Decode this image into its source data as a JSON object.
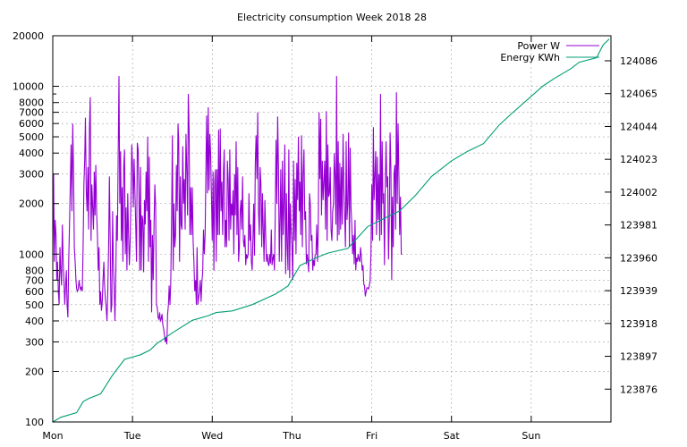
{
  "chart_data": {
    "type": "line",
    "title": "Electricity consumption Week 2018 28",
    "xlabel": "",
    "ylabel": "",
    "y2label": "",
    "x_ticks": [
      "Mon",
      "Tue",
      "Wed",
      "Thu",
      "Fri",
      "Sat",
      "Sun"
    ],
    "xlim_days": [
      0,
      7
    ],
    "ylim": [
      100,
      20000
    ],
    "yscale": "log",
    "y_ticks": [
      100,
      200,
      300,
      400,
      500,
      600,
      700,
      800,
      1000,
      2000,
      3000,
      4000,
      5000,
      6000,
      7000,
      8000,
      10000,
      20000
    ],
    "y2lim": [
      123855,
      124102
    ],
    "y2_ticks": [
      123876,
      123897,
      123918,
      123939,
      123960,
      123981,
      124002,
      124023,
      124044,
      124065,
      124086
    ],
    "grid": true,
    "legend_position": "top-right",
    "series": [
      {
        "name": "Power W",
        "axis": "y",
        "color": "#9400d3",
        "resolution_days": 0.01,
        "x_start_day": 0.0,
        "values": [
          1000,
          3000,
          900,
          1600,
          1300,
          700,
          900,
          600,
          500,
          1100,
          800,
          650,
          1500,
          900,
          700,
          500,
          650,
          800,
          500,
          420,
          900,
          1500,
          2600,
          4500,
          1800,
          6000,
          3100,
          1100,
          900,
          700,
          620,
          600,
          620,
          700,
          640,
          610,
          640,
          600,
          1100,
          2600,
          3700,
          6500,
          2400,
          1800,
          3300,
          1400,
          5600,
          8600,
          1200,
          2600,
          1900,
          1400,
          3100,
          1700,
          3400,
          1800,
          1300,
          800,
          1100,
          500,
          600,
          460,
          520,
          700,
          900,
          650,
          540,
          480,
          400,
          600,
          1100,
          2900,
          1200,
          450,
          500,
          1800,
          900,
          650,
          400,
          700,
          1700,
          1200,
          3800,
          11500,
          2000,
          4100,
          1200,
          2500,
          900,
          3300,
          4200,
          1000,
          1900,
          800,
          2300,
          1300,
          860,
          1200,
          2100,
          4500,
          3500,
          1900,
          3700,
          2400,
          1500,
          900,
          4600,
          4200,
          2400,
          800,
          3300,
          800,
          1700,
          1600,
          780,
          2100,
          1500,
          3100,
          1800,
          5000,
          900,
          3800,
          1100,
          1600,
          450,
          1300,
          700,
          1500,
          2600,
          1900,
          500,
          480,
          420,
          410,
          450,
          400,
          410,
          440,
          380,
          360,
          330,
          300,
          320,
          290,
          440,
          500,
          650,
          500,
          680,
          1600,
          5100,
          800,
          2000,
          1100,
          1300,
          3400,
          1800,
          6000,
          4700,
          900,
          2900,
          1500,
          1400,
          4400,
          2000,
          2800,
          1400,
          5200,
          3200,
          1700,
          9000,
          5600,
          1300,
          2500,
          1300,
          2500,
          1200,
          900,
          600,
          700,
          500,
          1100,
          500,
          550,
          600,
          700,
          520,
          680,
          780,
          1400,
          1000,
          1300,
          3200,
          6700,
          2300,
          7500,
          2400,
          5200,
          3900,
          2200,
          1200,
          3100,
          800,
          2700,
          3200,
          900,
          3200,
          1300,
          5500,
          1300,
          5600,
          1800,
          2700,
          1300,
          3100,
          4200,
          1100,
          1600,
          1100,
          3600,
          2800,
          1200,
          4200,
          1400,
          2000,
          1700,
          2400,
          1000,
          3000,
          1700,
          4700,
          1300,
          3300,
          900,
          1100,
          1800,
          2100,
          1400,
          2900,
          1200,
          1100,
          1300,
          860,
          1000,
          940,
          1000,
          2300,
          1200,
          1500,
          900,
          800,
          1200,
          2000,
          980,
          3500,
          5100,
          2800,
          7000,
          1800,
          1300,
          3300,
          2600,
          1100,
          2300,
          1400,
          900,
          2100,
          1300,
          900,
          1000,
          880,
          850,
          1000,
          880,
          1400,
          860,
          940,
          1000,
          800,
          1700,
          4800,
          2000,
          6600,
          3300,
          900,
          1600,
          3200,
          900,
          3600,
          1300,
          2000,
          4500,
          760,
          2300,
          1100,
          800,
          4200,
          720,
          2000,
          1400,
          1100,
          700,
          3600,
          1200,
          2800,
          1000,
          3500,
          2100,
          5000,
          1800,
          2700,
          1300,
          5100,
          1100,
          3000,
          4200,
          1600,
          1800,
          870,
          1000,
          900,
          780,
          2300,
          2000,
          1200,
          1300,
          800,
          920,
          850,
          990,
          1000,
          1500,
          900,
          1400,
          7000,
          2800,
          6400,
          1700,
          3600,
          2100,
          2700,
          3600,
          1400,
          7100,
          1200,
          4500,
          2200,
          2300,
          3300,
          1400,
          1200,
          1800,
          2000,
          4000,
          2900,
          1500,
          11500,
          1200,
          4700,
          1300,
          3500,
          1400,
          3300,
          1500,
          5200,
          2500,
          1700,
          1100,
          4700,
          1600,
          2000,
          5300,
          1100,
          4300,
          1900,
          1500,
          1000,
          1300,
          870,
          1600,
          800,
          950,
          900,
          1000,
          930,
          900,
          1100,
          960,
          800,
          860,
          660,
          650,
          560,
          600,
          630,
          630,
          620,
          650,
          700,
          1000,
          2600,
          1200,
          5700,
          2100,
          2900,
          4100,
          1300,
          3800,
          1600,
          3000,
          1200,
          9000,
          1300,
          4700,
          2000,
          2300,
          860,
          2600,
          4700,
          2500,
          2900,
          930,
          1600,
          5300,
          3200,
          700,
          2200,
          1100,
          3000,
          3400,
          1400,
          9200,
          2000,
          6000,
          3000,
          1300,
          2200,
          1000,
          1000
        ]
      },
      {
        "name": "Energy KWh",
        "axis": "y2",
        "color": "#009e73",
        "points": [
          [
            0.0,
            123855
          ],
          [
            0.1,
            123858
          ],
          [
            0.3,
            123861
          ],
          [
            0.38,
            123868
          ],
          [
            0.45,
            123870
          ],
          [
            0.6,
            123873
          ],
          [
            0.75,
            123885
          ],
          [
            0.9,
            123895
          ],
          [
            1.1,
            123898
          ],
          [
            1.22,
            123901
          ],
          [
            1.3,
            123905
          ],
          [
            1.5,
            123912
          ],
          [
            1.75,
            123920
          ],
          [
            1.95,
            123923
          ],
          [
            2.05,
            123925
          ],
          [
            2.25,
            123926
          ],
          [
            2.5,
            123930
          ],
          [
            2.8,
            123937
          ],
          [
            2.95,
            123942
          ],
          [
            3.1,
            123955
          ],
          [
            3.3,
            123960
          ],
          [
            3.45,
            123963
          ],
          [
            3.7,
            123966
          ],
          [
            3.95,
            123980
          ],
          [
            4.15,
            123985
          ],
          [
            4.35,
            123990
          ],
          [
            4.55,
            124000
          ],
          [
            4.75,
            124012
          ],
          [
            5.0,
            124022
          ],
          [
            5.2,
            124028
          ],
          [
            5.4,
            124033
          ],
          [
            5.6,
            124045
          ],
          [
            5.75,
            124052
          ],
          [
            5.95,
            124061
          ],
          [
            6.15,
            124070
          ],
          [
            6.3,
            124075
          ],
          [
            6.5,
            124081
          ],
          [
            6.6,
            124085
          ],
          [
            6.82,
            124088
          ],
          [
            6.9,
            124096
          ],
          [
            6.98,
            124100
          ]
        ]
      }
    ]
  }
}
